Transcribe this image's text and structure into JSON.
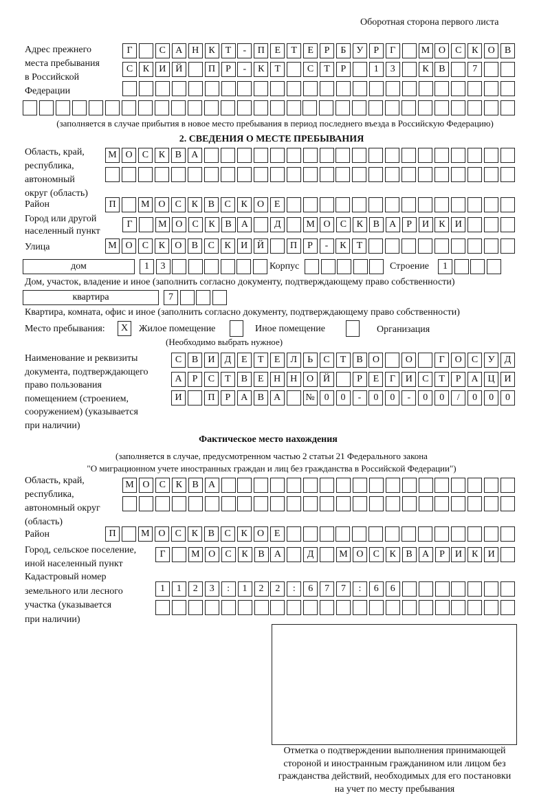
{
  "header": "Оборотная сторона первого листа",
  "prev_address": {
    "label": [
      "Адрес прежнего",
      "места пребывания",
      "в Российской",
      "Федерации"
    ],
    "rows": [
      "Г САНКТ-ПЕТЕРБУРГ МОСКОВ",
      "СКИЙ ПР-КТ СТР 13 КВ 7",
      "",
      ""
    ],
    "note": "(заполняется в случае прибытия в новое место пребывания в период последнего въезда в Российскую Федерацию)"
  },
  "section2": {
    "title": "2. СВЕДЕНИЯ О МЕСТЕ ПРЕБЫВАНИЯ",
    "region_label": [
      "Область, край,",
      "республика,",
      "автономный",
      "округ (область)"
    ],
    "region_rows": [
      "МОСКВА",
      ""
    ],
    "district_label": "Район",
    "district": "П МОСКВСКОЕ",
    "city_label": [
      "Город или другой",
      "населенный пункт"
    ],
    "city": "Г МОСКВА Д МОСКВАРИКИ",
    "street_label": "Улица",
    "street": "МОСКОВСКИЙ ПР-КТ",
    "house_type": "дом",
    "house": "13",
    "korpus_label": "Корпус",
    "korpus": "",
    "stroenie_label": "Строение",
    "stroenie": "1",
    "house_note": "Дом, участок, владение и иное (заполнить согласно документу, подтверждающему право собственности)",
    "flat_type": "квартира",
    "flat": "7",
    "flat_note": "Квартира, комната, офис и иное (заполнить согласно документу, подтверждающему право собственности)",
    "stay_label": "Место пребывания:",
    "stay_options": [
      {
        "label": "Жилое помещение",
        "mark": "X"
      },
      {
        "label": "Иное помещение",
        "mark": ""
      },
      {
        "label": "Организация",
        "mark": ""
      }
    ],
    "stay_note": "(Необходимо выбрать нужное)",
    "doc_label": [
      "Наименование и реквизиты",
      "документа, подтверждающего",
      "право пользования",
      "помещением (строением,",
      "сооружением) (указывается",
      "при наличии)"
    ],
    "doc_rows": [
      "СВИДЕТЕЛЬСТВО О ГОСУД",
      "АРСТВЕННОЙ РЕГИСТРАЦИ",
      "И ПРАВА №00-00-00/000"
    ]
  },
  "actual": {
    "title": "Фактическое место нахождения",
    "note": [
      "(заполняется в случае, предусмотренном частью 2 статьи 21 Федерального закона",
      "\"О миграционном учете иностранных граждан и лиц без гражданства в Российской Федерации\")"
    ],
    "region_label": [
      "Область, край,",
      "республика,",
      "автономный округ",
      "(область)"
    ],
    "region_rows": [
      "МОСКВА",
      ""
    ],
    "district_label": "Район",
    "district": "П МОСКВСКОЕ",
    "city_label": [
      "Город, сельское поселение,",
      "иной населенный пункт"
    ],
    "city": "Г МОСКВА Д МОСКВАРИКИ",
    "cadastre_label": [
      "Кадастровый номер",
      "земельного или лесного",
      "участка (указывается",
      "при наличии)"
    ],
    "cadastre_rows": [
      "1123:122:677:66",
      ""
    ]
  },
  "stamp_caption": [
    "Отметка о подтверждении выполнения принимающей",
    "стороной и иностранным гражданином или лицом без",
    "гражданства действий, необходимых для его постановки",
    "на учет по месту пребывания"
  ]
}
